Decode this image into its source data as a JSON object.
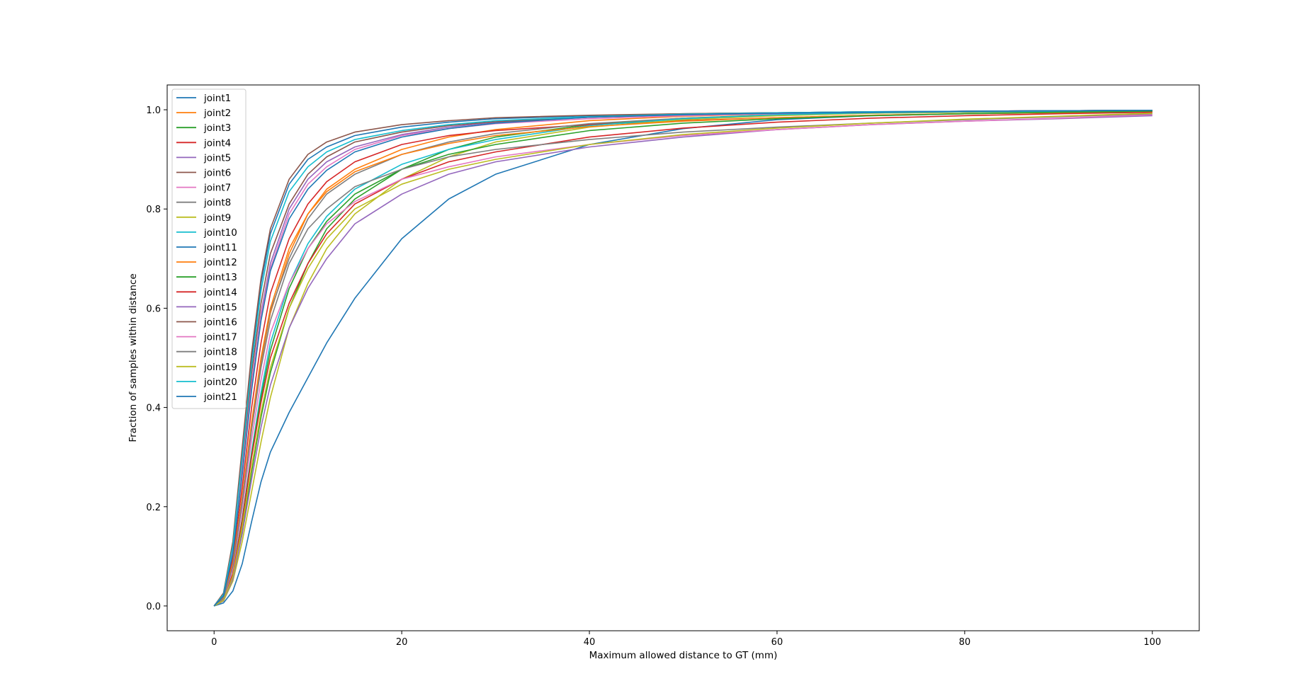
{
  "chart_data": {
    "type": "line",
    "title": "",
    "xlabel": "Maximum allowed distance to GT (mm)",
    "ylabel": "Fraction of samples within distance",
    "xlim": [
      -5,
      105
    ],
    "ylim": [
      -0.05,
      1.05
    ],
    "xticks": [
      0,
      20,
      40,
      60,
      80,
      100
    ],
    "yticks": [
      0.0,
      0.2,
      0.4,
      0.6,
      0.8,
      1.0
    ],
    "xtick_labels": [
      "0",
      "20",
      "40",
      "60",
      "80",
      "100"
    ],
    "ytick_labels": [
      "0.0",
      "0.2",
      "0.4",
      "0.6",
      "0.8",
      "1.0"
    ],
    "grid": false,
    "legend_position": "top-left",
    "x": [
      0,
      1,
      2,
      3,
      4,
      5,
      6,
      8,
      10,
      12,
      15,
      20,
      25,
      30,
      40,
      50,
      60,
      70,
      80,
      90,
      100
    ],
    "series": [
      {
        "name": "joint1",
        "color": "#1f77b4",
        "values": [
          0,
          0.006,
          0.03,
          0.085,
          0.17,
          0.25,
          0.31,
          0.39,
          0.46,
          0.53,
          0.62,
          0.74,
          0.82,
          0.87,
          0.93,
          0.962,
          0.98,
          0.988,
          0.992,
          0.995,
          0.997
        ]
      },
      {
        "name": "joint2",
        "color": "#ff7f0e",
        "values": [
          0,
          0.015,
          0.08,
          0.21,
          0.36,
          0.49,
          0.59,
          0.71,
          0.79,
          0.84,
          0.88,
          0.92,
          0.945,
          0.96,
          0.978,
          0.987,
          0.992,
          0.995,
          0.997,
          0.998,
          0.999
        ]
      },
      {
        "name": "joint3",
        "color": "#2ca02c",
        "values": [
          0,
          0.01,
          0.055,
          0.15,
          0.27,
          0.38,
          0.47,
          0.6,
          0.69,
          0.76,
          0.82,
          0.88,
          0.92,
          0.945,
          0.97,
          0.983,
          0.99,
          0.994,
          0.996,
          0.998,
          0.999
        ]
      },
      {
        "name": "joint4",
        "color": "#d62728",
        "values": [
          0,
          0.018,
          0.095,
          0.24,
          0.4,
          0.53,
          0.63,
          0.74,
          0.81,
          0.855,
          0.895,
          0.93,
          0.948,
          0.958,
          0.97,
          0.978,
          0.984,
          0.989,
          0.992,
          0.994,
          0.996
        ]
      },
      {
        "name": "joint5",
        "color": "#9467bd",
        "values": [
          0,
          0.02,
          0.11,
          0.28,
          0.45,
          0.59,
          0.69,
          0.8,
          0.86,
          0.895,
          0.925,
          0.95,
          0.965,
          0.975,
          0.985,
          0.991,
          0.994,
          0.996,
          0.997,
          0.998,
          0.999
        ]
      },
      {
        "name": "joint6",
        "color": "#8c564b",
        "values": [
          0,
          0.022,
          0.115,
          0.29,
          0.47,
          0.61,
          0.71,
          0.81,
          0.87,
          0.905,
          0.935,
          0.955,
          0.968,
          0.976,
          0.985,
          0.99,
          0.993,
          0.995,
          0.997,
          0.998,
          0.999
        ]
      },
      {
        "name": "joint7",
        "color": "#e377c2",
        "values": [
          0,
          0.02,
          0.11,
          0.275,
          0.445,
          0.585,
          0.68,
          0.79,
          0.85,
          0.885,
          0.92,
          0.948,
          0.962,
          0.972,
          0.982,
          0.988,
          0.992,
          0.995,
          0.997,
          0.998,
          0.999
        ]
      },
      {
        "name": "joint8",
        "color": "#7f7f7f",
        "values": [
          0,
          0.015,
          0.085,
          0.215,
          0.365,
          0.495,
          0.595,
          0.7,
          0.78,
          0.83,
          0.87,
          0.91,
          0.935,
          0.952,
          0.972,
          0.983,
          0.989,
          0.993,
          0.995,
          0.997,
          0.998
        ]
      },
      {
        "name": "joint9",
        "color": "#bcbd22",
        "values": [
          0,
          0.01,
          0.05,
          0.13,
          0.23,
          0.33,
          0.42,
          0.56,
          0.65,
          0.72,
          0.79,
          0.86,
          0.905,
          0.935,
          0.965,
          0.98,
          0.988,
          0.993,
          0.995,
          0.997,
          0.998
        ]
      },
      {
        "name": "joint10",
        "color": "#17becf",
        "values": [
          0,
          0.012,
          0.065,
          0.175,
          0.31,
          0.43,
          0.53,
          0.65,
          0.73,
          0.785,
          0.84,
          0.89,
          0.92,
          0.94,
          0.968,
          0.982,
          0.99,
          0.994,
          0.996,
          0.997,
          0.998
        ]
      },
      {
        "name": "joint11",
        "color": "#1f77b4",
        "values": [
          0,
          0.024,
          0.125,
          0.31,
          0.5,
          0.65,
          0.75,
          0.85,
          0.9,
          0.925,
          0.948,
          0.965,
          0.975,
          0.982,
          0.988,
          0.992,
          0.994,
          0.996,
          0.997,
          0.998,
          0.999
        ]
      },
      {
        "name": "joint12",
        "color": "#ff7f0e",
        "values": [
          0,
          0.016,
          0.085,
          0.22,
          0.37,
          0.5,
          0.6,
          0.72,
          0.79,
          0.835,
          0.875,
          0.91,
          0.932,
          0.948,
          0.966,
          0.977,
          0.984,
          0.989,
          0.992,
          0.994,
          0.996
        ]
      },
      {
        "name": "joint13",
        "color": "#2ca02c",
        "values": [
          0,
          0.012,
          0.065,
          0.175,
          0.305,
          0.42,
          0.515,
          0.64,
          0.72,
          0.775,
          0.83,
          0.88,
          0.91,
          0.93,
          0.958,
          0.973,
          0.982,
          0.988,
          0.992,
          0.995,
          0.997
        ]
      },
      {
        "name": "joint14",
        "color": "#d62728",
        "values": [
          0,
          0.012,
          0.065,
          0.17,
          0.3,
          0.41,
          0.5,
          0.61,
          0.69,
          0.75,
          0.81,
          0.86,
          0.895,
          0.915,
          0.945,
          0.963,
          0.975,
          0.983,
          0.988,
          0.992,
          0.995
        ]
      },
      {
        "name": "joint15",
        "color": "#9467bd",
        "values": [
          0,
          0.01,
          0.055,
          0.145,
          0.255,
          0.36,
          0.445,
          0.56,
          0.64,
          0.7,
          0.77,
          0.83,
          0.87,
          0.895,
          0.925,
          0.945,
          0.96,
          0.97,
          0.977,
          0.982,
          0.988
        ]
      },
      {
        "name": "joint16",
        "color": "#8c564b",
        "values": [
          0,
          0.026,
          0.13,
          0.32,
          0.51,
          0.66,
          0.76,
          0.86,
          0.91,
          0.935,
          0.955,
          0.97,
          0.978,
          0.984,
          0.989,
          0.992,
          0.994,
          0.996,
          0.997,
          0.998,
          0.999
        ]
      },
      {
        "name": "joint17",
        "color": "#e377c2",
        "values": [
          0,
          0.014,
          0.075,
          0.195,
          0.335,
          0.455,
          0.55,
          0.65,
          0.72,
          0.77,
          0.815,
          0.86,
          0.885,
          0.905,
          0.93,
          0.948,
          0.96,
          0.97,
          0.977,
          0.983,
          0.99
        ]
      },
      {
        "name": "joint18",
        "color": "#7f7f7f",
        "values": [
          0,
          0.015,
          0.08,
          0.21,
          0.355,
          0.48,
          0.575,
          0.69,
          0.76,
          0.8,
          0.845,
          0.88,
          0.905,
          0.92,
          0.94,
          0.955,
          0.965,
          0.973,
          0.98,
          0.986,
          0.992
        ]
      },
      {
        "name": "joint19",
        "color": "#bcbd22",
        "values": [
          0,
          0.011,
          0.06,
          0.16,
          0.28,
          0.39,
          0.48,
          0.6,
          0.68,
          0.74,
          0.8,
          0.85,
          0.88,
          0.9,
          0.93,
          0.95,
          0.963,
          0.973,
          0.981,
          0.987,
          0.993
        ]
      },
      {
        "name": "joint20",
        "color": "#17becf",
        "values": [
          0,
          0.023,
          0.12,
          0.3,
          0.485,
          0.635,
          0.735,
          0.835,
          0.885,
          0.915,
          0.94,
          0.958,
          0.97,
          0.978,
          0.986,
          0.991,
          0.994,
          0.996,
          0.997,
          0.998,
          0.999
        ]
      },
      {
        "name": "joint21",
        "color": "#1f77b4",
        "values": [
          0,
          0.02,
          0.105,
          0.265,
          0.435,
          0.575,
          0.675,
          0.78,
          0.84,
          0.878,
          0.915,
          0.945,
          0.962,
          0.973,
          0.985,
          0.99,
          0.993,
          0.995,
          0.997,
          0.998,
          0.999
        ]
      }
    ]
  }
}
